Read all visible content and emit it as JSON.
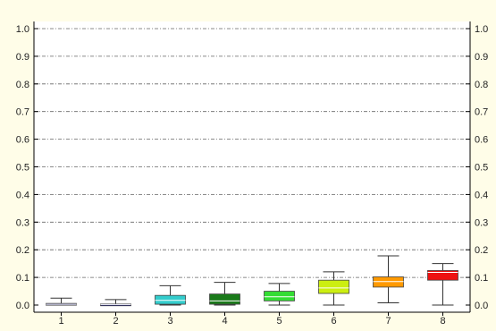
{
  "chart_data": {
    "type": "box",
    "title": "",
    "xlabel": "",
    "ylabel": "",
    "ylim": [
      0,
      1.0
    ],
    "y_ticks": [
      "0.0",
      "0.1",
      "0.2",
      "0.3",
      "0.4",
      "0.5",
      "0.6",
      "0.7",
      "0.8",
      "0.9",
      "1.0"
    ],
    "y_axis_right_mirrored": true,
    "grid": {
      "horizontal": true,
      "style": "dash-dot"
    },
    "categories": [
      "1",
      "2",
      "3",
      "4",
      "5",
      "6",
      "7",
      "8"
    ],
    "boxes": [
      {
        "category": "1",
        "min": 0.0,
        "q1": 0.0,
        "median": 0.003,
        "q3": 0.006,
        "max": 0.025,
        "color": "#1a1a8c"
      },
      {
        "category": "2",
        "min": 0.0,
        "q1": 0.0,
        "median": 0.002,
        "q3": 0.004,
        "max": 0.02,
        "color": "#1a1a8c"
      },
      {
        "category": "3",
        "min": 0.0,
        "q1": 0.003,
        "median": 0.017,
        "q3": 0.035,
        "max": 0.07,
        "color": "#33cccc"
      },
      {
        "category": "4",
        "min": 0.0,
        "q1": 0.003,
        "median": 0.015,
        "q3": 0.04,
        "max": 0.082,
        "color": "#1a7a1a"
      },
      {
        "category": "5",
        "min": 0.0,
        "q1": 0.015,
        "median": 0.03,
        "q3": 0.05,
        "max": 0.078,
        "color": "#33dd33"
      },
      {
        "category": "6",
        "min": 0.0,
        "q1": 0.042,
        "median": 0.062,
        "q3": 0.09,
        "max": 0.12,
        "color": "#ccee11"
      },
      {
        "category": "7",
        "min": 0.008,
        "q1": 0.065,
        "median": 0.085,
        "q3": 0.102,
        "max": 0.178,
        "color": "#ff9900"
      },
      {
        "category": "8",
        "min": 0.0,
        "q1": 0.09,
        "median": 0.118,
        "q3": 0.125,
        "max": 0.15,
        "color": "#ee1111"
      }
    ]
  }
}
